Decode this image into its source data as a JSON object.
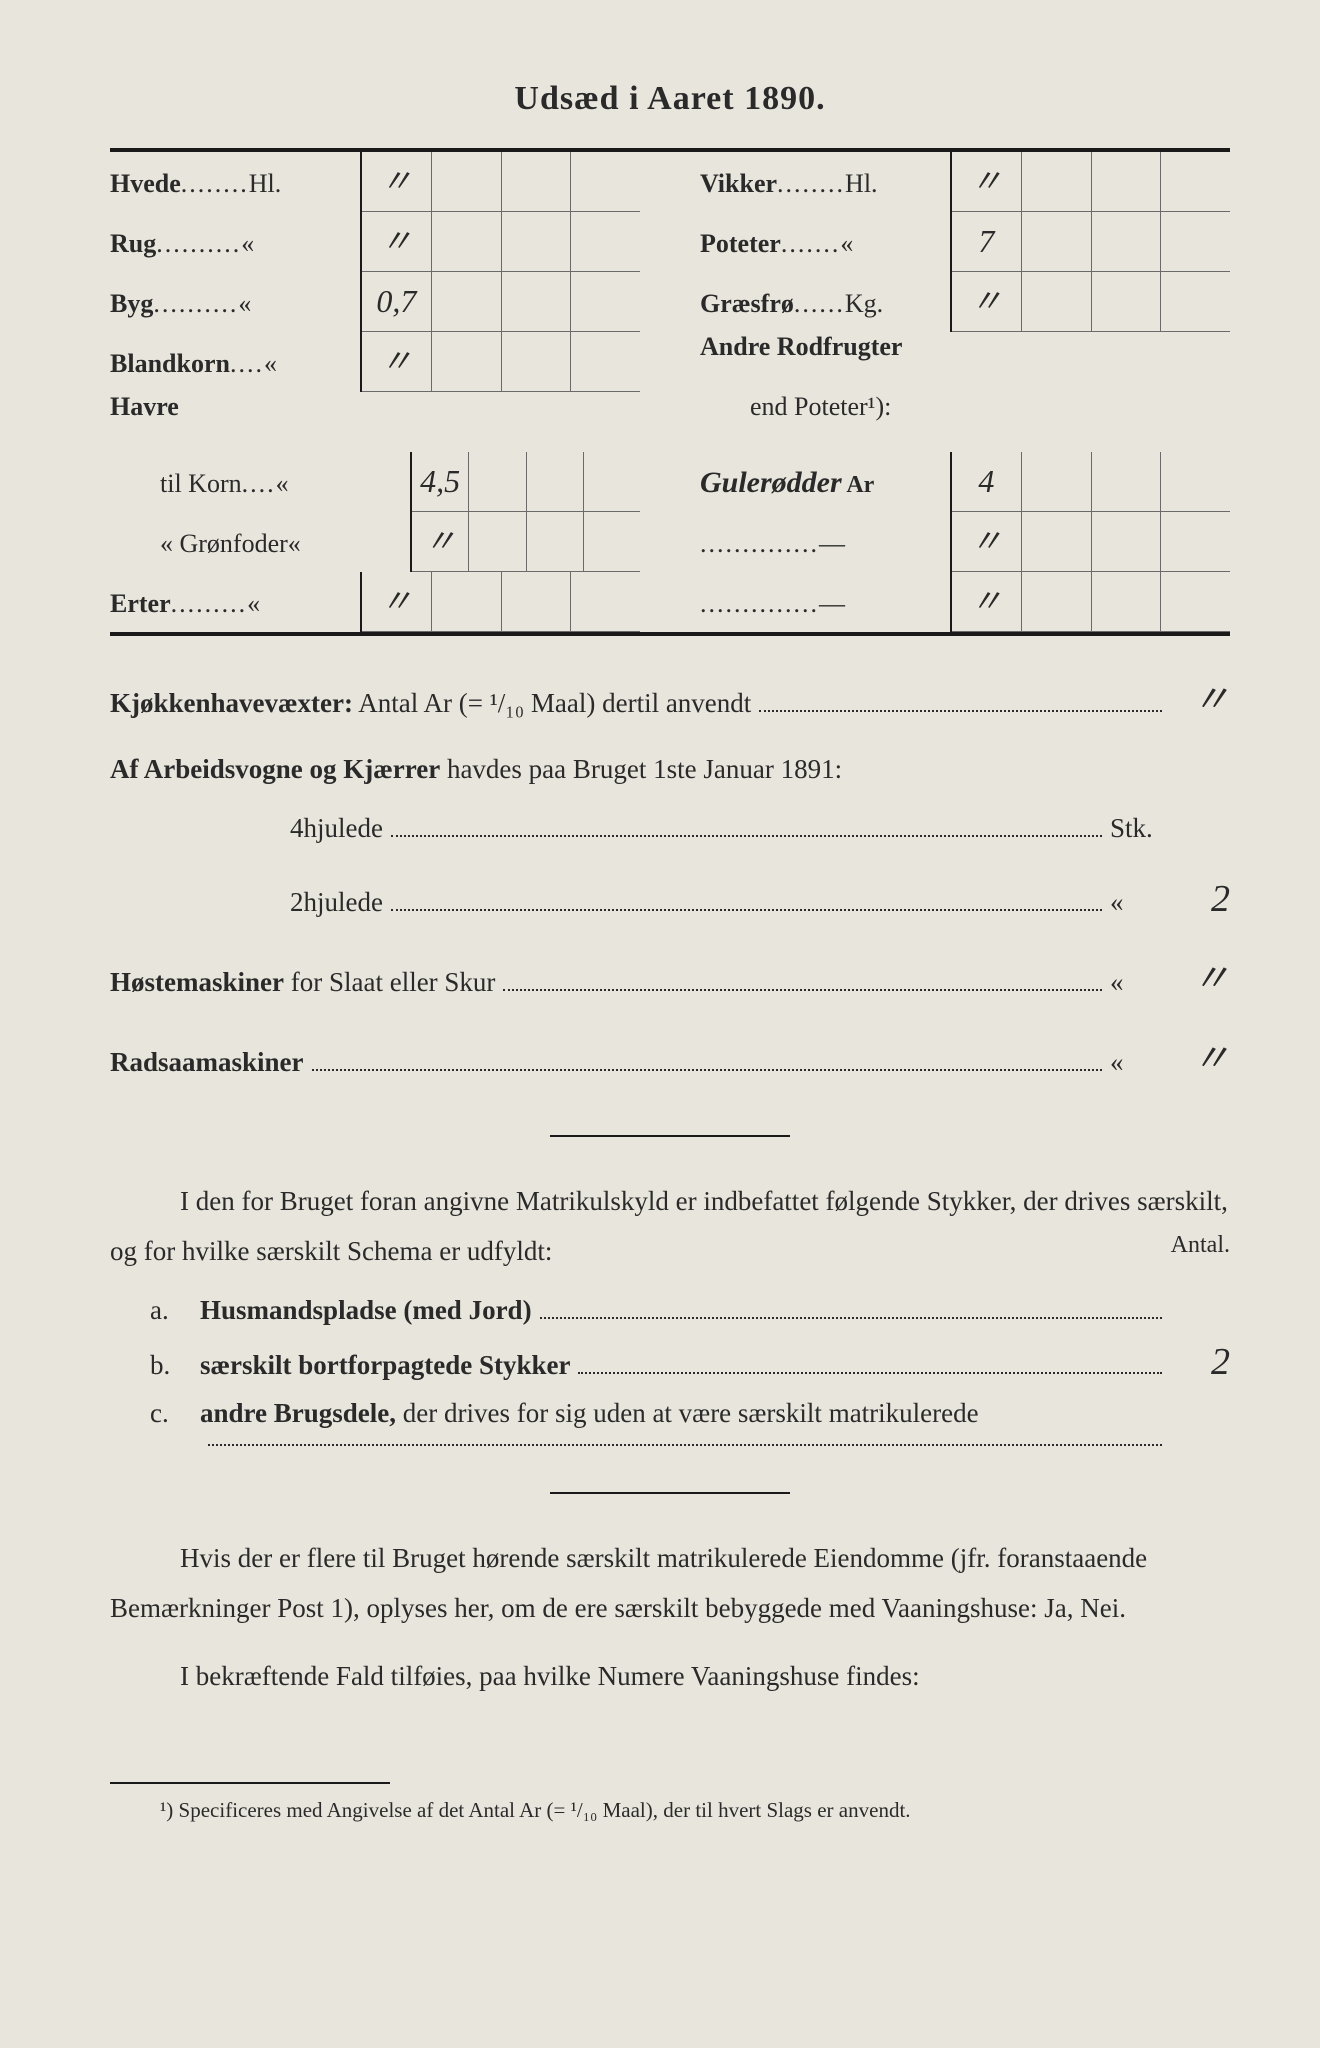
{
  "title": "Udsæd i Aaret 1890.",
  "crops_left": [
    {
      "label": "Hvede",
      "dots": "........",
      "unit": "Hl.",
      "values": [
        "〃",
        "",
        "",
        ""
      ]
    },
    {
      "label": "Rug",
      "dots": "..........",
      "unit": "«",
      "values": [
        "〃",
        "",
        "",
        ""
      ]
    },
    {
      "label": "Byg",
      "dots": "..........",
      "unit": "«",
      "values": [
        "0,7",
        "",
        "",
        ""
      ]
    },
    {
      "label": "Blandkorn",
      "dots": "....",
      "unit": "«",
      "values": [
        "〃",
        "",
        "",
        ""
      ]
    },
    {
      "label": "Havre",
      "dots": "",
      "unit": "",
      "values": null,
      "header": true
    },
    {
      "label": "til Korn",
      "dots": "....",
      "unit": "«",
      "values": [
        "4,5",
        "",
        "",
        ""
      ],
      "indent": true
    },
    {
      "label": "« Grønfoder",
      "dots": "",
      "unit": "«",
      "values": [
        "〃",
        "",
        "",
        ""
      ],
      "indent": true
    },
    {
      "label": "Erter",
      "dots": ".........",
      "unit": "«",
      "values": [
        "〃",
        "",
        "",
        ""
      ]
    }
  ],
  "crops_right": [
    {
      "label": "Vikker",
      "dots": "........",
      "unit": "Hl.",
      "values": [
        "〃",
        "",
        "",
        ""
      ]
    },
    {
      "label": "Poteter",
      "dots": ".......",
      "unit": "«",
      "values": [
        "7",
        "",
        "",
        ""
      ]
    },
    {
      "label": "Græsfrø",
      "dots": "......",
      "unit": "Kg.",
      "values": [
        "〃",
        "",
        "",
        ""
      ]
    },
    {
      "label": "Andre Rodfrugter",
      "dots": "",
      "unit": "",
      "values": null,
      "header": true
    },
    {
      "label": "end Poteter¹):",
      "dots": "",
      "unit": "",
      "values": null,
      "indent": true,
      "plain": true
    },
    {
      "label_custom": "Gulerødder",
      "suffix": "Ar",
      "values": [
        "4",
        "",
        "",
        ""
      ]
    },
    {
      "label": "",
      "dots": "..............",
      "unit": "—",
      "values": [
        "〃",
        "",
        "",
        ""
      ]
    },
    {
      "label": "",
      "dots": "..............",
      "unit": "—",
      "values": [
        "〃",
        "",
        "",
        ""
      ]
    }
  ],
  "kjokkenhave": {
    "label_bold": "Kjøkkenhavevæxter:",
    "label_rest": " Antal Ar (= ¹/₁₀ Maal) dertil anvendt",
    "value": "〃"
  },
  "arbeidsvogne": {
    "label_bold": "Af Arbeidsvogne og Kjærrer",
    "label_rest": " havdes paa Bruget 1ste Januar 1891:",
    "rows": [
      {
        "label": "4hjulede",
        "suffix": "Stk.",
        "value": ""
      },
      {
        "label": "2hjulede",
        "suffix": "«",
        "value": "2"
      }
    ]
  },
  "hostemaskiner": {
    "label_bold": "Høstemaskiner",
    "label_rest": " for Slaat eller Skur",
    "suffix": "«",
    "value": "〃"
  },
  "radsaamaskiner": {
    "label_bold": "Radsaamaskiner",
    "suffix": "«",
    "value": "〃"
  },
  "matrikul_para": "I den for Bruget foran angivne Matrikulskyld er indbefattet følgende Stykker, der drives særskilt, og for hvilke særskilt Schema er udfyldt:",
  "antal_label": "Antal.",
  "list": [
    {
      "letter": "a.",
      "text_bold": "Husmandspladse (med Jord)",
      "value": ""
    },
    {
      "letter": "b.",
      "text_bold": "særskilt bortforpagtede Stykker",
      "value": "2"
    },
    {
      "letter": "c.",
      "text_bold": "andre Brugsdele,",
      "text_rest": " der drives for sig uden at være særskilt matrikulerede",
      "value": "",
      "wrap": true
    }
  ],
  "vaanings_para1": "Hvis der er flere til Bruget hørende særskilt matrikulerede Eiendomme (jfr. foranstaaende Bemærkninger Post 1), oplyses her, om de ere særskilt bebyggede med ",
  "vaanings_bold1": "Vaaningshuse:",
  "vaanings_rest1": " Ja, Nei.",
  "vaanings_para2_a": "I bekræftende Fald tilføies, paa ",
  "vaanings_para2_bold": "hvilke Numere",
  "vaanings_para2_b": " Vaaningshuse findes:",
  "footnote": "¹) Specificeres med Angivelse af det Antal Ar (= ¹/₁₀ Maal), der til hvert Slags er anvendt."
}
